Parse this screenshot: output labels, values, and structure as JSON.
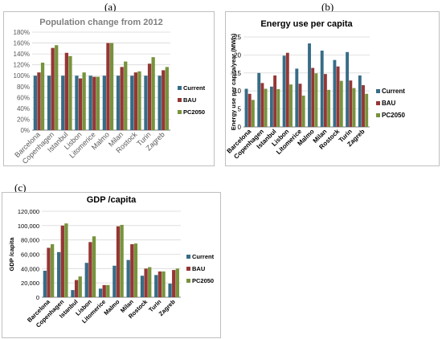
{
  "panel_labels": [
    "(a)",
    "(b)",
    "(c)"
  ],
  "colors": {
    "Current": "#376c86",
    "BAU": "#953735",
    "PC2050": "#77933c"
  },
  "chart_data": [
    {
      "type": "bar",
      "title": "Population change from 2012",
      "xlabel": "",
      "ylabel": "",
      "categories": [
        "Barcelona",
        "Copenhagen",
        "Istanbul",
        "Lisbon",
        "Litomerice",
        "Malmo",
        "Milan",
        "Rostock",
        "Turin",
        "Zagreb"
      ],
      "yticks": [
        "0%",
        "20%",
        "40%",
        "60%",
        "80%",
        "100%",
        "120%",
        "140%",
        "160%",
        "180%"
      ],
      "ylim": [
        0,
        180
      ],
      "legend_position": "right",
      "series": [
        {
          "name": "Current",
          "values": [
            100,
            100,
            100,
            100,
            100,
            100,
            100,
            100,
            100,
            100
          ]
        },
        {
          "name": "BAU",
          "values": [
            106,
            151,
            142,
            95,
            98,
            160,
            116,
            106,
            122,
            110
          ]
        },
        {
          "name": "PC2050",
          "values": [
            124,
            156,
            136,
            106,
            98,
            160,
            126,
            108,
            134,
            116
          ]
        }
      ]
    },
    {
      "type": "bar",
      "title": "Energy use per capita",
      "xlabel": "",
      "ylabel": "Energy use per capita/year (MWh)",
      "categories": [
        "Barcelona",
        "Copenhagen",
        "Istanbul",
        "Lisbon",
        "Litomerice",
        "Malmo",
        "Milan",
        "Rostock",
        "Turin",
        "Zagreb"
      ],
      "yticks": [
        "0",
        "5",
        "10",
        "15",
        "20",
        "25"
      ],
      "ylim": [
        0,
        25
      ],
      "legend_position": "right",
      "series": [
        {
          "name": "Current",
          "values": [
            10.6,
            15,
            11.2,
            19.8,
            16.2,
            23.2,
            21.2,
            18.6,
            20.8,
            14.3
          ]
        },
        {
          "name": "BAU",
          "values": [
            9.2,
            12.2,
            14.3,
            20.6,
            12,
            16.4,
            14.7,
            16.8,
            12.9,
            11.6
          ]
        },
        {
          "name": "PC2050",
          "values": [
            7.5,
            10.6,
            10.5,
            11.8,
            8.7,
            14.9,
            10.3,
            12.8,
            10.8,
            9.2
          ]
        }
      ]
    },
    {
      "type": "bar",
      "title": "GDP /capita",
      "xlabel": "",
      "ylabel": "GDP /capita",
      "categories": [
        "Barcelona",
        "Copenhagen",
        "Istanbul",
        "Lisbon",
        "Litomerice",
        "Malmo",
        "Milan",
        "Rostock",
        "Turin",
        "Zagreb"
      ],
      "yticks": [
        "0",
        "20,000",
        "40,000",
        "60,000",
        "80,000",
        "100,000",
        "120,000"
      ],
      "ylim": [
        0,
        120000
      ],
      "legend_position": "right",
      "series": [
        {
          "name": "Current",
          "values": [
            37000,
            63000,
            10000,
            48000,
            12000,
            44000,
            52000,
            30000,
            31000,
            19000
          ]
        },
        {
          "name": "BAU",
          "values": [
            69000,
            100000,
            24000,
            77000,
            17000,
            99000,
            74000,
            40000,
            36000,
            38000
          ]
        },
        {
          "name": "PC2050",
          "values": [
            74000,
            103000,
            29000,
            85000,
            17000,
            101000,
            75000,
            42000,
            36000,
            40000
          ]
        }
      ]
    }
  ]
}
